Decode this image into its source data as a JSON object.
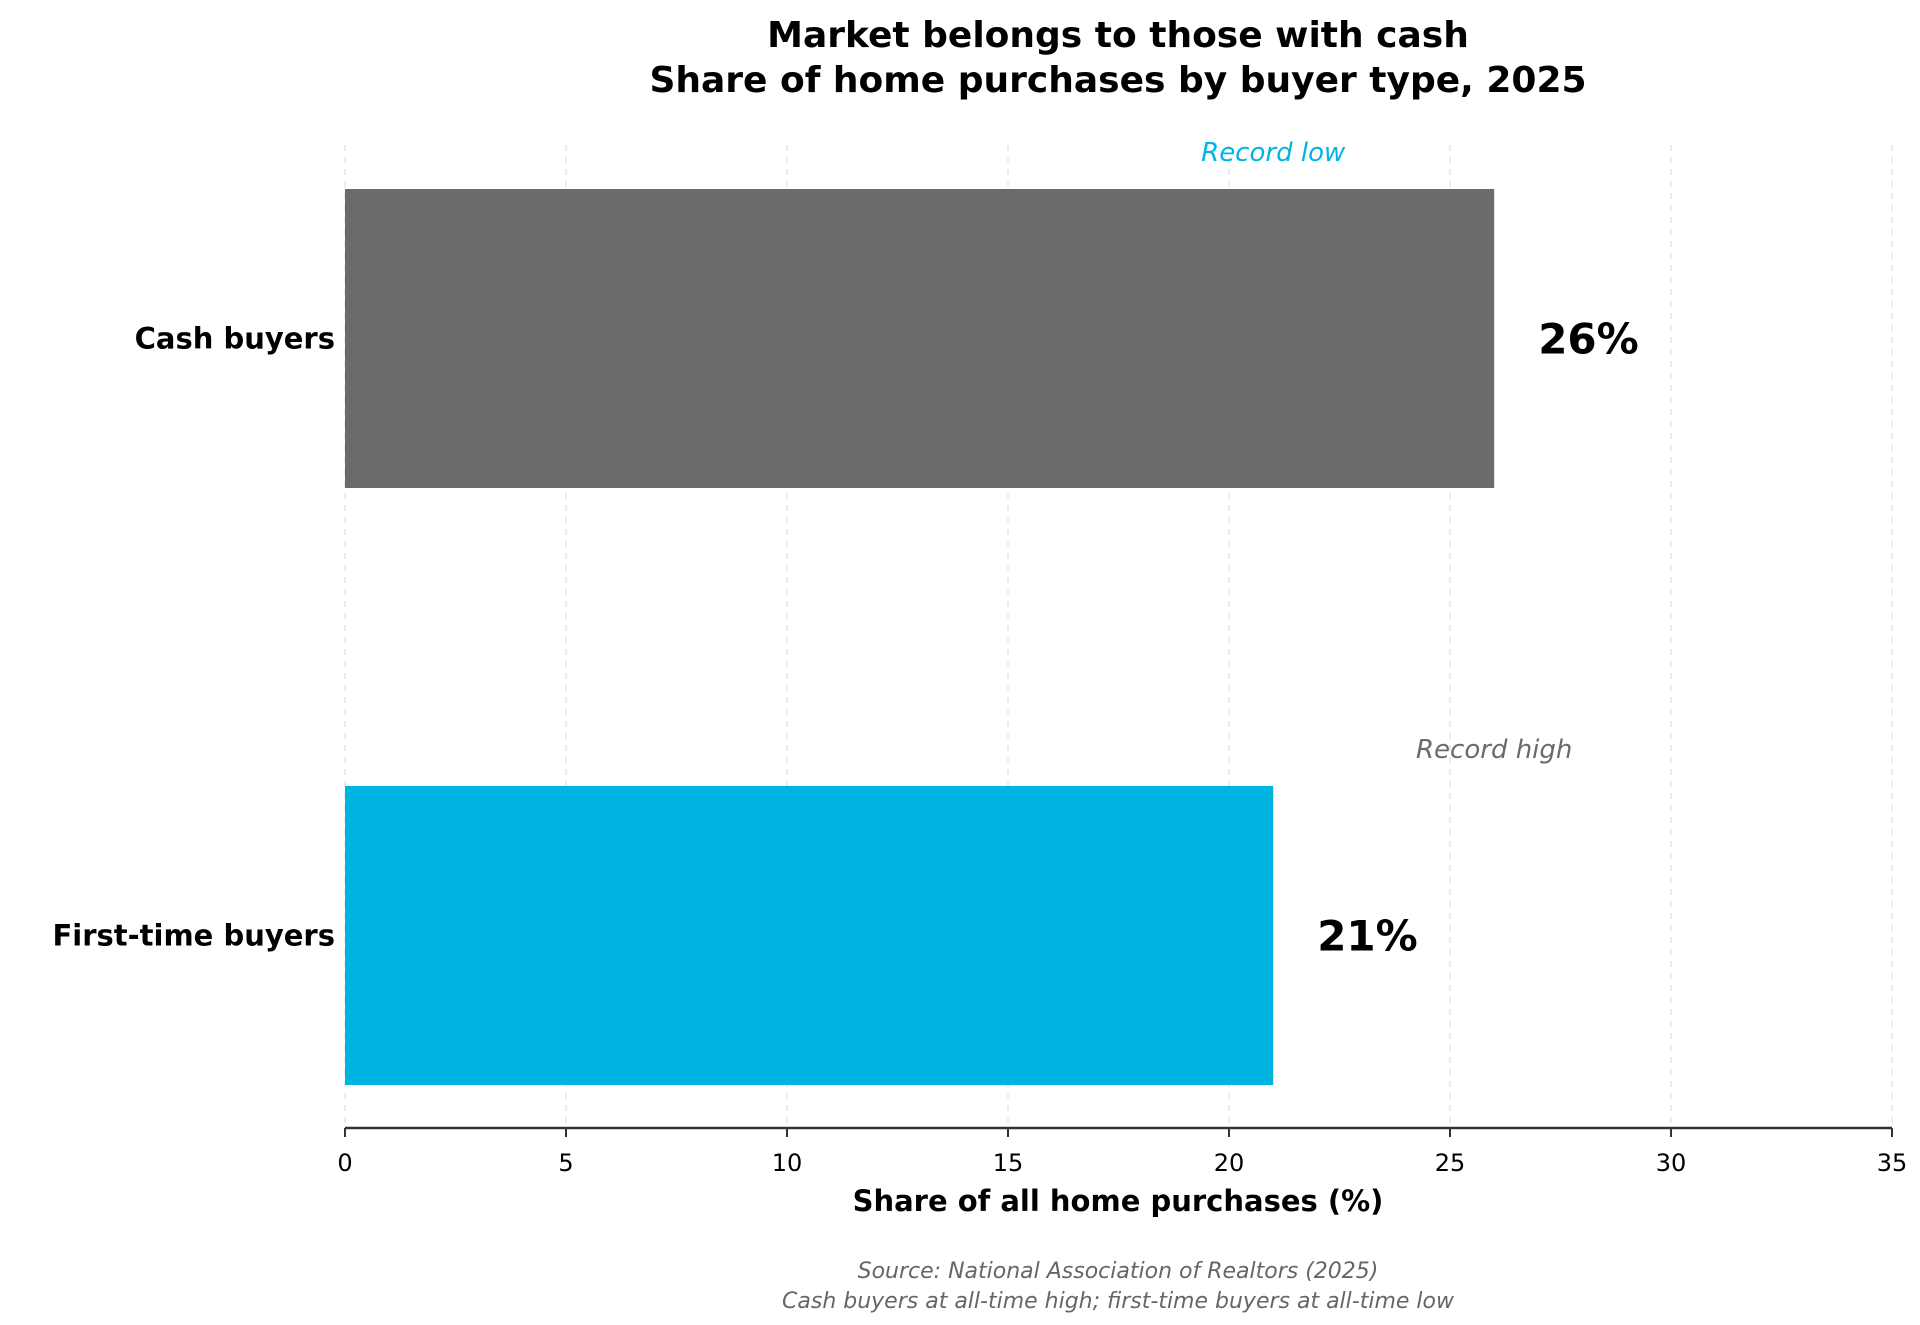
{
  "chart_data": {
    "type": "bar",
    "orientation": "horizontal",
    "title": [
      "Market belongs to those with cash",
      "Share of home purchases by buyer type, 2025"
    ],
    "categories": [
      "Cash buyers",
      "First-time buyers"
    ],
    "values": [
      26,
      21
    ],
    "value_labels": [
      "26%",
      "21%"
    ],
    "bar_colors": [
      "#6b6b6b",
      "#00b4e1"
    ],
    "xlabel": "Share of all home purchases (%)",
    "ylabel": "",
    "xlim": [
      0,
      35
    ],
    "xticks": [
      0,
      5,
      10,
      15,
      20,
      25,
      30,
      35
    ],
    "grid": "vertical dashed",
    "annotations": [
      {
        "text": "Record low",
        "color": "#00b4e1",
        "x": 21
      },
      {
        "text": "Record high",
        "color": "#6b6b6b",
        "x": 26
      }
    ],
    "source": [
      "Source: National Association of Realtors (2025)",
      "Cash buyers at all-time high; first-time buyers at all-time low"
    ]
  }
}
